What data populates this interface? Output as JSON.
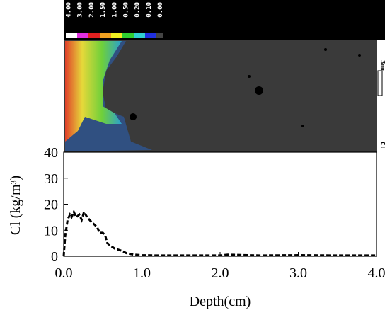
{
  "color_scale": {
    "labels": [
      "4.00",
      "3.00",
      "2.00",
      "1.50",
      "1.00",
      "0.50",
      "0.20",
      "0.10",
      "0.00"
    ]
  },
  "map": {
    "scale_label": "3mm",
    "element": "Cl"
  },
  "chart_data": {
    "type": "line",
    "x": [
      0,
      0.02,
      0.05,
      0.08,
      0.1,
      0.13,
      0.16,
      0.2,
      0.23,
      0.26,
      0.3,
      0.33,
      0.36,
      0.4,
      0.43,
      0.46,
      0.5,
      0.53,
      0.56,
      0.6,
      0.65,
      0.7,
      0.75,
      0.8,
      0.9,
      1.0,
      1.2,
      1.5,
      2.0,
      2.1,
      2.5,
      3.0,
      3.5,
      4.0
    ],
    "series": [
      {
        "name": "Cl",
        "color": "#000000",
        "values": [
          0,
          8,
          14,
          16,
          15,
          17,
          15,
          16,
          14,
          17,
          15,
          14,
          13,
          12,
          11,
          9,
          9,
          8,
          5,
          4,
          3,
          2.5,
          2,
          1.2,
          0.6,
          0.4,
          0.3,
          0.3,
          0.3,
          0.6,
          0.3,
          0.4,
          0.3,
          0.3
        ]
      }
    ],
    "xlabel": "Depth(cm)",
    "ylabel": "Cl (kg/m³)",
    "xlim": [
      0,
      4
    ],
    "ylim": [
      0,
      40
    ],
    "xticks": [
      {
        "value": 0,
        "label": "0.0"
      },
      {
        "value": 1,
        "label": "1.0"
      },
      {
        "value": 2,
        "label": "2.0"
      },
      {
        "value": 3,
        "label": "3.0"
      },
      {
        "value": 4,
        "label": "4.0"
      }
    ],
    "yticks": [
      0,
      10,
      20,
      30,
      40
    ]
  }
}
